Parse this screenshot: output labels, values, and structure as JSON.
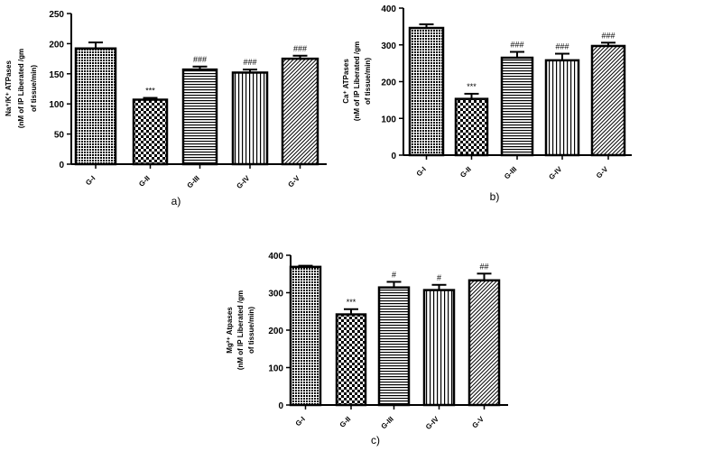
{
  "chart_data": [
    {
      "type": "bar",
      "panel_label": "a)",
      "ylabel_lines": [
        "Na⁺/K⁺ ATPases",
        "(nM of IP Liberated /gm",
        "of tissue/min)"
      ],
      "categories": [
        "G-I",
        "G-II",
        "G-III",
        "G-IV",
        "G-V"
      ],
      "values": [
        192,
        107,
        157,
        152,
        175
      ],
      "errors": [
        10,
        3,
        5,
        5,
        5
      ],
      "annotations": [
        "",
        "***",
        "###",
        "###",
        "###"
      ],
      "ylim": [
        0,
        250
      ],
      "yticks": [
        0,
        50,
        100,
        150,
        200,
        250
      ],
      "patterns": [
        "dots",
        "checker",
        "horizontal",
        "vertical",
        "diagonal"
      ],
      "grid": false
    },
    {
      "type": "bar",
      "panel_label": "b)",
      "ylabel_lines": [
        "Ca⁺ ATPases",
        "(nM of IP Liberated /gm",
        "of tissue/min)"
      ],
      "categories": [
        "G-I",
        "G-II",
        "G-III",
        "G-IV",
        "G-V"
      ],
      "values": [
        346,
        153,
        265,
        258,
        297
      ],
      "errors": [
        10,
        14,
        16,
        18,
        9
      ],
      "annotations": [
        "",
        "***",
        "###",
        "###",
        "###"
      ],
      "ylim": [
        0,
        400
      ],
      "yticks": [
        0,
        100,
        200,
        300,
        400
      ],
      "patterns": [
        "dots",
        "checker",
        "horizontal",
        "vertical",
        "diagonal"
      ],
      "grid": false
    },
    {
      "type": "bar",
      "panel_label": "c)",
      "ylabel_lines": [
        "Mg²⁺ Atpases",
        "(nM of IP Liberated /gm",
        "of tissue/min)"
      ],
      "categories": [
        "G-I",
        "G-II",
        "G-III",
        "G-IV",
        "G-V"
      ],
      "values": [
        369,
        242,
        314,
        307,
        333
      ],
      "errors": [
        3,
        14,
        15,
        14,
        18
      ],
      "annotations": [
        "",
        "***",
        "#",
        "#",
        "##"
      ],
      "ylim": [
        0,
        400
      ],
      "yticks": [
        0,
        100,
        200,
        300,
        400
      ],
      "patterns": [
        "dots",
        "checker",
        "horizontal",
        "vertical",
        "diagonal"
      ],
      "grid": false
    }
  ]
}
